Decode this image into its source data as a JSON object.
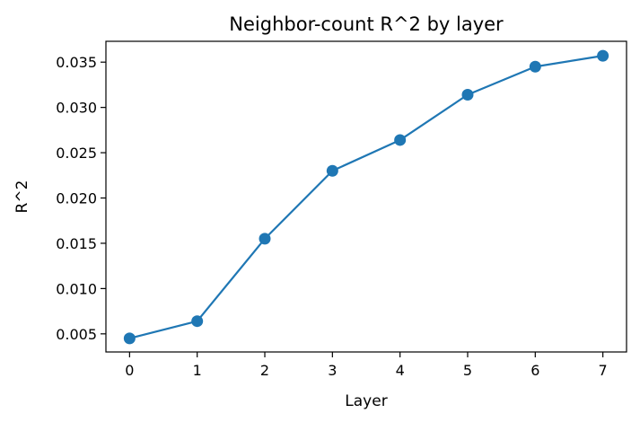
{
  "chart_data": {
    "type": "line",
    "title": "Neighbor-count R^2 by layer",
    "xlabel": "Layer",
    "ylabel": "R^2",
    "x": [
      0,
      1,
      2,
      3,
      4,
      5,
      6,
      7
    ],
    "series": [
      {
        "values": [
          0.0045,
          0.0064,
          0.0155,
          0.023,
          0.0264,
          0.0314,
          0.0345,
          0.0357
        ]
      }
    ],
    "xticks": [
      "0",
      "1",
      "2",
      "3",
      "4",
      "5",
      "6",
      "7"
    ],
    "yticks": [
      "0.005",
      "0.010",
      "0.015",
      "0.020",
      "0.025",
      "0.030",
      "0.035"
    ],
    "xlim": [
      -0.35,
      7.35
    ],
    "ylim": [
      0.003,
      0.0373
    ],
    "grid": false,
    "marker": "circle",
    "color": "#1f77b4"
  }
}
